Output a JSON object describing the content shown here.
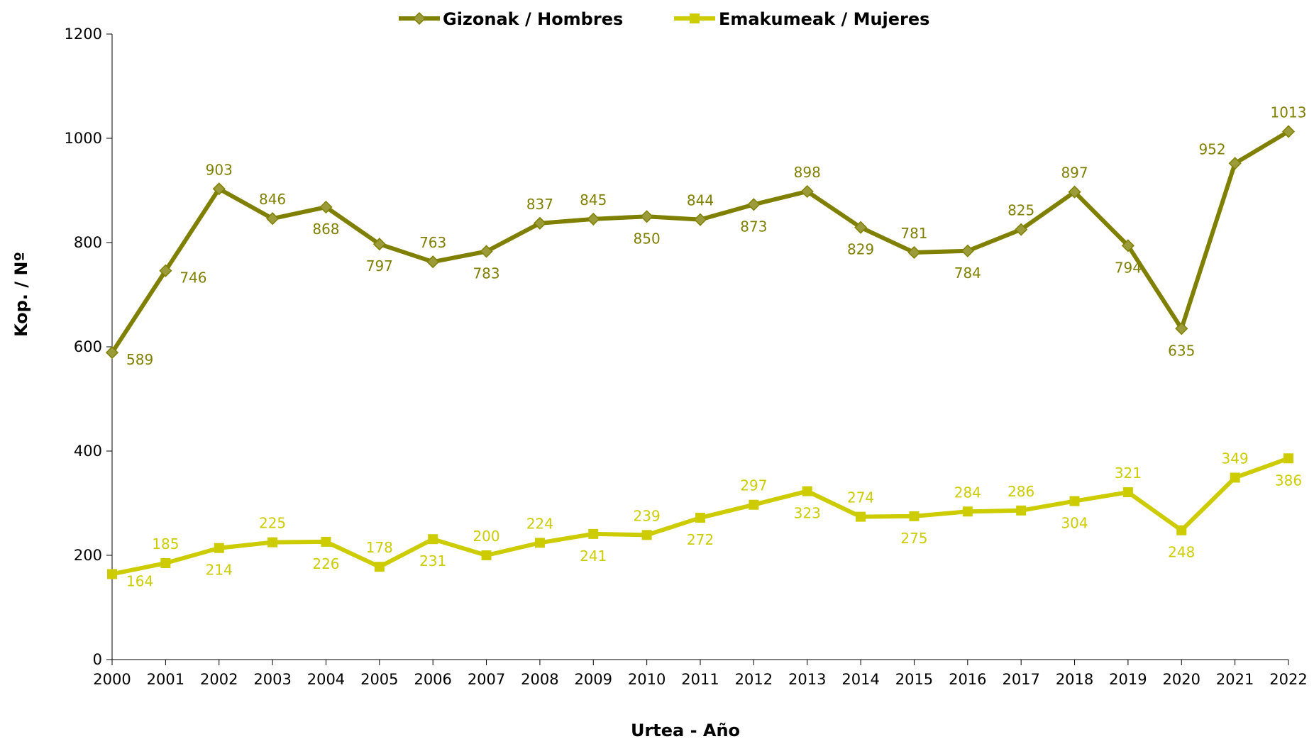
{
  "chart_data": {
    "type": "line",
    "xlabel": "Urtea - Año",
    "ylabel": "Kop. / Nº",
    "ylim": [
      0,
      1200
    ],
    "yticks": [
      0,
      200,
      400,
      600,
      800,
      1000,
      1200
    ],
    "grid": false,
    "legend_position": "top-center",
    "categories": [
      "2000",
      "2001",
      "2002",
      "2003",
      "2004",
      "2005",
      "2006",
      "2007",
      "2008",
      "2009",
      "2010",
      "2011",
      "2012",
      "2013",
      "2014",
      "2015",
      "2016",
      "2017",
      "2018",
      "2019",
      "2020",
      "2021",
      "2022"
    ],
    "series": [
      {
        "name": "Gizonak / Hombres",
        "color": "#808000",
        "marker_color": "#9b9b3a",
        "label_color": "#808000",
        "marker": "diamond",
        "values": [
          589,
          746,
          903,
          846,
          868,
          797,
          763,
          783,
          837,
          845,
          850,
          844,
          873,
          898,
          829,
          781,
          784,
          825,
          897,
          794,
          635,
          952,
          1013
        ],
        "label_positions": [
          "right",
          "right",
          "above",
          "above",
          "below",
          "below",
          "above",
          "below",
          "above",
          "above",
          "below",
          "above",
          "below",
          "above",
          "below",
          "above",
          "below",
          "above",
          "above",
          "below",
          "below",
          "left",
          "above"
        ]
      },
      {
        "name": "Emakumeak / Mujeres",
        "color": "#cccc00",
        "marker_color": "#cccc00",
        "label_color": "#cccc00",
        "marker": "square",
        "values": [
          164,
          185,
          214,
          225,
          226,
          178,
          231,
          200,
          224,
          241,
          239,
          272,
          297,
          323,
          274,
          275,
          284,
          286,
          304,
          321,
          248,
          349,
          386
        ],
        "label_positions": [
          "right",
          "above",
          "below",
          "above",
          "below",
          "above",
          "below",
          "above",
          "above",
          "below",
          "above",
          "below",
          "above",
          "below",
          "above",
          "below",
          "above",
          "above",
          "below",
          "above",
          "below",
          "above",
          "below"
        ]
      }
    ]
  }
}
